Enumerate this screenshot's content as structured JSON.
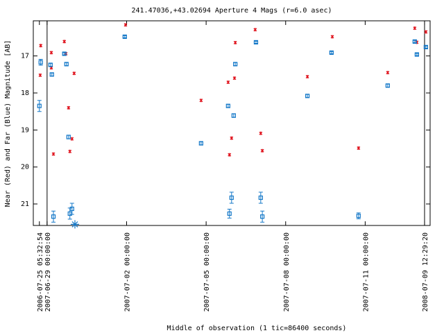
{
  "chart_data": {
    "type": "scatter",
    "title": "241.47036,+43.02694   Aperture 4 Mags (r=6.0 asec)",
    "x_label": "Middle of observation (1 tic=86400 seconds)",
    "y_label": "Near (Red) and Far (Blue) Magnitude [AB]",
    "xlim": [
      -0.52,
      14.45
    ],
    "xticks": [
      {
        "value": -0.29,
        "label": "2006-07-25 05:32:54"
      },
      {
        "value": 0,
        "label": "2007-06-29 00:00:00"
      },
      {
        "value": 3,
        "label": "2007-07-02 00:00:00"
      },
      {
        "value": 6,
        "label": "2007-07-05 00:00:00"
      },
      {
        "value": 9,
        "label": "2007-07-08 00:00:00"
      },
      {
        "value": 12,
        "label": "2007-07-11 00:00:00"
      },
      {
        "value": 14.24,
        "label": "2008-07-09 12:29:20"
      }
    ],
    "ylim": [
      21.58,
      16.05
    ],
    "y_inverted": true,
    "yticks": [
      17,
      18,
      19,
      20,
      21
    ],
    "series": [
      {
        "color": "#e0141e",
        "marker": "cross",
        "x": [
          -0.26,
          -0.24,
          0.16,
          0.16,
          0.24,
          0.65,
          0.71,
          0.81,
          0.86,
          0.94,
          1.02,
          2.96,
          5.81,
          6.83,
          6.88,
          6.96,
          7.07,
          7.1,
          7.85,
          8.06,
          8.12,
          9.82,
          10.76,
          11.75,
          12.85,
          13.87,
          13.95,
          14.29
        ],
        "values": [
          17.52,
          16.72,
          16.91,
          17.32,
          19.65,
          16.61,
          16.94,
          18.4,
          19.58,
          19.24,
          17.47,
          16.16,
          18.2,
          17.71,
          19.67,
          19.22,
          17.6,
          16.64,
          16.29,
          19.09,
          19.56,
          17.56,
          16.48,
          19.49,
          17.45,
          16.25,
          16.63,
          16.35
        ]
      },
      {
        "color": "#1478c8",
        "marker": "square",
        "x": [
          -0.24,
          -0.29,
          0.13,
          0.18,
          0.24,
          0.65,
          0.73,
          0.81,
          0.86,
          0.94,
          2.93,
          5.81,
          6.83,
          7.04,
          7.1,
          6.88,
          6.96,
          7.88,
          8.06,
          8.12,
          9.82,
          10.73,
          11.75,
          12.85,
          13.87,
          13.95,
          14.29
        ],
        "values": [
          17.17,
          18.35,
          17.24,
          17.5,
          21.34,
          16.94,
          17.22,
          19.19,
          21.26,
          21.13,
          16.48,
          19.36,
          18.35,
          18.61,
          17.22,
          21.26,
          20.83,
          16.63,
          20.83,
          21.34,
          18.08,
          16.91,
          21.32,
          17.8,
          16.61,
          16.96,
          16.76
        ],
        "errors": [
          0.08,
          0.15,
          0.04,
          0.04,
          0.15,
          0.03,
          0.04,
          0.05,
          0.15,
          0.15,
          0.03,
          0.04,
          0.04,
          0.05,
          0.04,
          0.12,
          0.15,
          0.03,
          0.15,
          0.15,
          0.04,
          0.03,
          0.08,
          0.04,
          0.03,
          0.03,
          0.03
        ]
      },
      {
        "color": "#1478c8",
        "marker": "star",
        "x": [
          1.05
        ],
        "values": [
          21.55
        ]
      }
    ]
  }
}
